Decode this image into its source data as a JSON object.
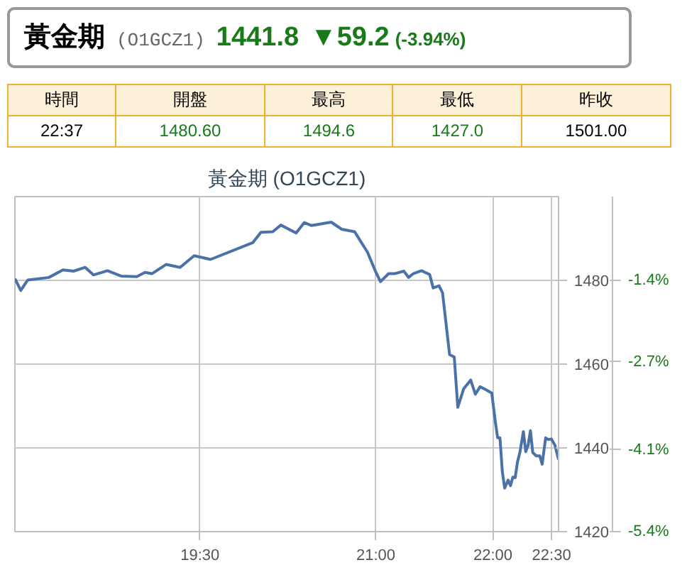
{
  "chart_data": {
    "type": "line",
    "title": "黃金期 (O1GCZ1)",
    "annotations": [
      "黃金期",
      "(O1GCZ1)",
      "1441.8",
      "▼59.2",
      "(-3.94%)",
      "時間",
      "開盤",
      "最高",
      "最低",
      "昨收",
      "22:37",
      "1480.60",
      "1494.6",
      "1427.0",
      "1501.00"
    ],
    "xlim": [
      17.92,
      22.56
    ],
    "xticks": [
      {
        "value": 19.5,
        "label": "19:30"
      },
      {
        "value": 21,
        "label": "21:00"
      },
      {
        "value": 22,
        "label": "22:00"
      },
      {
        "value": 22.5,
        "label": "22:30"
      }
    ],
    "ylim": [
      1420,
      1500
    ],
    "yticks": [
      1420,
      1440,
      1460,
      1480
    ],
    "y2lim": [
      -5.4,
      -0.07
    ],
    "y2ticks": [
      {
        "value": -5.4,
        "label": "-5.4%"
      },
      {
        "value": -4.1,
        "label": "-4.1%"
      },
      {
        "value": -2.7,
        "label": "-2.7%"
      },
      {
        "value": -1.4,
        "label": "-1.4%"
      }
    ],
    "grid": true,
    "series": [
      {
        "color": "#4a72a8",
        "x": [
          17.92,
          17.97,
          18.03,
          18.21,
          18.33,
          18.42,
          18.52,
          18.59,
          18.71,
          18.83,
          18.96,
          19.03,
          19.09,
          19.21,
          19.33,
          19.45,
          19.59,
          19.95,
          20.02,
          20.12,
          20.19,
          20.32,
          20.39,
          20.45,
          20.62,
          20.71,
          20.82,
          20.93,
          21.0,
          21.04,
          21.11,
          21.16,
          21.24,
          21.28,
          21.32,
          21.39,
          21.46,
          21.49,
          21.54,
          21.57,
          21.63,
          21.67,
          21.7,
          21.75,
          21.81,
          21.85,
          21.89,
          21.94,
          21.99,
          22.02,
          22.04,
          22.06,
          22.08,
          22.1,
          22.13,
          22.15,
          22.17,
          22.19,
          22.21,
          22.23,
          22.26,
          22.28,
          22.3,
          22.32,
          22.34,
          22.37,
          22.4,
          22.42,
          22.45,
          22.47,
          22.5,
          22.53,
          22.56
        ],
        "values": [
          1480.4,
          1477.6,
          1480.1,
          1480.7,
          1482.5,
          1482.2,
          1483.1,
          1481.3,
          1482.3,
          1481.0,
          1480.9,
          1481.9,
          1481.6,
          1483.8,
          1483.1,
          1485.9,
          1485.0,
          1489.0,
          1491.5,
          1491.6,
          1493.2,
          1491.3,
          1493.8,
          1493.1,
          1493.9,
          1492.2,
          1491.6,
          1486.7,
          1482.0,
          1479.7,
          1481.6,
          1481.6,
          1482.2,
          1480.7,
          1481.6,
          1482.3,
          1481.4,
          1478.2,
          1478.7,
          1477.0,
          1462.3,
          1461.7,
          1449.7,
          1454.1,
          1456.2,
          1452.8,
          1454.6,
          1453.9,
          1453.1,
          1446.3,
          1442.4,
          1442.4,
          1434.4,
          1430.4,
          1432.3,
          1431.0,
          1433.0,
          1432.9,
          1436.7,
          1438.9,
          1443.9,
          1439.1,
          1440.6,
          1444.1,
          1438.9,
          1438.1,
          1438.1,
          1436.1,
          1442.4,
          1442.0,
          1442.1,
          1440.6,
          1437.2
        ]
      }
    ]
  }
}
